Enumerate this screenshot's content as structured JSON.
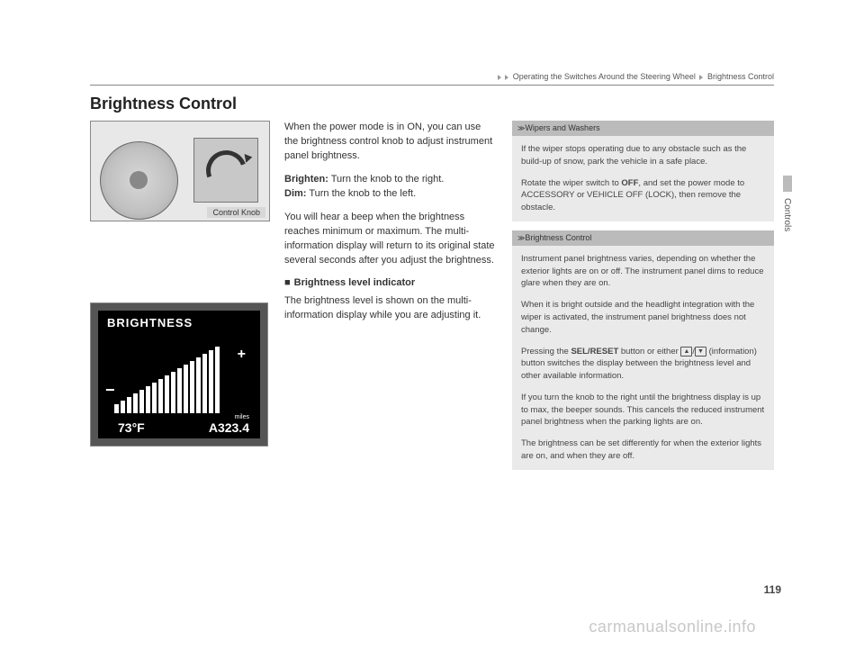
{
  "breadcrumb": {
    "a": "Operating the Switches Around the Steering Wheel",
    "b": "Brightness Control"
  },
  "title": "Brightness Control",
  "fig1": {
    "caption": "Control Knob"
  },
  "fig2": {
    "title": "BRIGHTNESS",
    "temp": "73°F",
    "odo_prefix": "A",
    "odo": "323.4",
    "miles": "miles"
  },
  "body": {
    "p1": "When the power mode is in ON, you can use the brightness control knob to adjust instrument panel brightness.",
    "brighten_lbl": "Brighten:",
    "brighten": "Turn the knob to the right.",
    "dim_lbl": "Dim:",
    "dim": "Turn the knob to the left.",
    "p2": "You will hear a beep when the brightness reaches minimum or maximum. The multi-information display will return to its original state several seconds after you adjust the brightness.",
    "sub": "Brightness level indicator",
    "p3": "The brightness level is shown on the multi-information display while you are adjusting it."
  },
  "info1": {
    "head": "Wipers and Washers",
    "p1": "If the wiper stops operating due to any obstacle such as the build-up of snow, park the vehicle in a safe place.",
    "p2a": "Rotate the wiper switch to ",
    "p2_off": "OFF",
    "p2b": ", and set the power mode to ACCESSORY or VEHICLE OFF (LOCK), then remove the obstacle."
  },
  "info2": {
    "head": "Brightness Control",
    "p1": "Instrument panel brightness varies, depending on whether the exterior lights are on or off. The instrument panel dims to reduce glare when they are on.",
    "p2": "When it is bright outside and the headlight integration with the wiper is activated, the instrument panel brightness does not change.",
    "p3a": "Pressing the ",
    "p3_btn": "SEL/RESET",
    "p3b": " button or either ",
    "p3c": " (information) button switches the display between the brightness level and other available information.",
    "p4": "If you turn the knob to the right until the brightness display is up to max, the beeper sounds. This cancels the reduced instrument panel brightness when the parking lights are on.",
    "p5": "The brightness can be set differently for when the exterior lights are on, and when they are off."
  },
  "side_tab": "Controls",
  "page_num": "119",
  "watermark": "carmanualsonline.info",
  "bar_heights": [
    10,
    14,
    18,
    22,
    26,
    30,
    34,
    38,
    42,
    46,
    50,
    54,
    58,
    62,
    66,
    70,
    74
  ]
}
